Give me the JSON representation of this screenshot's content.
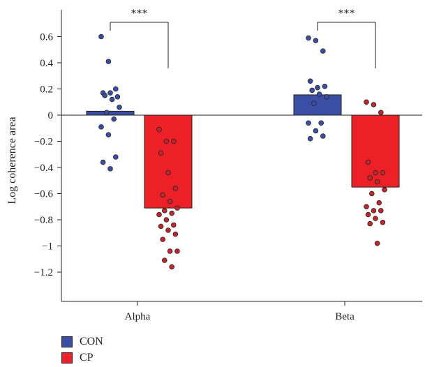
{
  "chart_data": {
    "type": "bar",
    "categories": [
      "Alpha",
      "Beta"
    ],
    "ylabel": "Log coherence area",
    "ylim": [
      -1.4,
      0.8
    ],
    "yticks": [
      -1.2,
      -1,
      -0.8,
      -0.6,
      -0.4,
      -0.2,
      0,
      0.2,
      0.4,
      0.6
    ],
    "ytick_labels": [
      "−1.2",
      "−1",
      "−0.8",
      "−0.6",
      "−0.4",
      "−0.2",
      "0",
      "0.2",
      "0.4",
      "0.6"
    ],
    "legend": "bottom-left",
    "series": [
      {
        "name": "CON",
        "color": "#3a4fa3",
        "values": [
          0.03,
          0.155
        ]
      },
      {
        "name": "CP",
        "color": "#ee2027",
        "values": [
          -0.71,
          -0.55
        ]
      }
    ],
    "points": {
      "CON": [
        [
          0.6,
          0.41,
          0.2,
          0.17,
          0.17,
          0.14,
          0.15,
          0.12,
          0.06,
          0.02,
          -0.03,
          -0.09,
          -0.15,
          -0.32,
          -0.36,
          -0.41
        ],
        [
          0.59,
          0.57,
          0.49,
          0.26,
          0.21,
          0.22,
          0.19,
          0.16,
          0.14,
          0.09,
          -0.06,
          -0.06,
          -0.12,
          -0.16,
          -0.18
        ]
      ],
      "CP": [
        [
          -0.11,
          -0.2,
          -0.2,
          -0.29,
          -0.44,
          -0.56,
          -0.61,
          -0.66,
          -0.71,
          -0.73,
          -0.75,
          -0.76,
          -0.8,
          -0.84,
          -0.85,
          -0.88,
          -0.91,
          -0.95,
          -1.04,
          -1.04,
          -1.11,
          -1.16
        ],
        [
          0.1,
          0.08,
          0.02,
          -0.36,
          -0.44,
          -0.44,
          -0.48,
          -0.51,
          -0.57,
          -0.6,
          -0.67,
          -0.7,
          -0.73,
          -0.73,
          -0.76,
          -0.79,
          -0.82,
          -0.83,
          -0.98
        ]
      ]
    },
    "significance": [
      "***",
      "***"
    ]
  }
}
